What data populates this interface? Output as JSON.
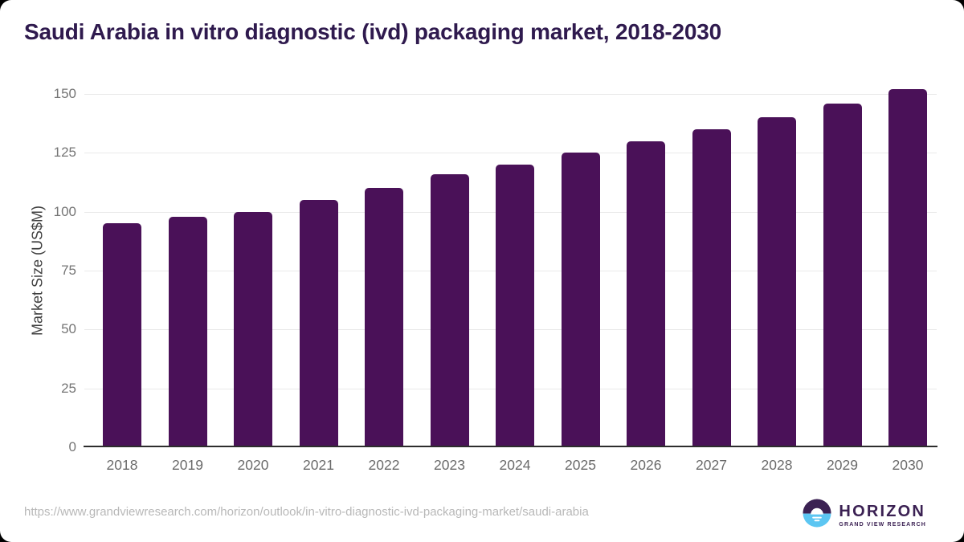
{
  "window": {
    "background_color": "#000000",
    "card_color": "#ffffff"
  },
  "chart_data": {
    "type": "bar",
    "title": "Saudi Arabia in vitro diagnostic (ivd) packaging market, 2018-2030",
    "categories": [
      "2018",
      "2019",
      "2020",
      "2021",
      "2022",
      "2023",
      "2024",
      "2025",
      "2026",
      "2027",
      "2028",
      "2029",
      "2030"
    ],
    "values": [
      95,
      98,
      100,
      105,
      110,
      116,
      120,
      125,
      130,
      135,
      140,
      146,
      152
    ],
    "xlabel": "",
    "ylabel": "Market Size (US$M)",
    "ylim": [
      0,
      150
    ],
    "yticks": [
      0,
      25,
      50,
      75,
      100,
      125,
      150
    ],
    "grid": "horizontal",
    "legend_position": "none",
    "bar_color": "#4a1158",
    "title_color": "#2f1a4e",
    "gridline_color": "#e9e9e9",
    "axis_line_color": "#2d2d2d",
    "tick_label_color": "#757575",
    "axis_title_color": "#3f3f3f"
  },
  "footer": {
    "source_url": "https://www.grandviewresearch.com/horizon/outlook/in-vitro-diagnostic-ivd-packaging-market/saudi-arabia",
    "logo": {
      "name": "HORIZON",
      "subtitle": "GRAND VIEW RESEARCH",
      "purple": "#3b2153",
      "blue": "#5cc6f2"
    }
  }
}
